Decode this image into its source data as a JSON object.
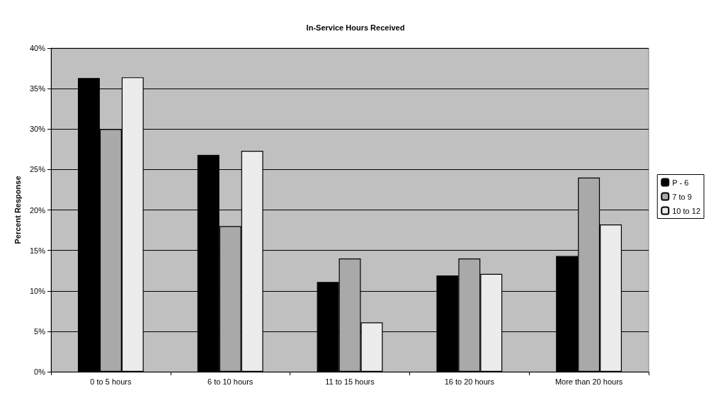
{
  "chart_data": {
    "type": "bar",
    "title": "In-Service Hours Received",
    "ylabel": "Percent Response",
    "categories": [
      "0 to 5 hours",
      "6 to 10 hours",
      "11 to 15 hours",
      "16 to 20 hours",
      "More than 20 hours"
    ],
    "series": [
      {
        "name": "P - 6",
        "color": "#000000",
        "values": [
          36.3,
          26.8,
          11.1,
          11.9,
          14.3
        ]
      },
      {
        "name": "7 to 9",
        "color": "#a9a9a9",
        "values": [
          30.0,
          18.0,
          14.0,
          14.0,
          24.0
        ]
      },
      {
        "name": "10 to 12",
        "color": "#ececec",
        "values": [
          36.4,
          27.3,
          6.1,
          12.1,
          18.2
        ]
      }
    ],
    "ylim": [
      0,
      40
    ],
    "yticks": [
      {
        "value": 0,
        "label": "0%"
      },
      {
        "value": 5,
        "label": "5%"
      },
      {
        "value": 10,
        "label": "10%"
      },
      {
        "value": 15,
        "label": "15%"
      },
      {
        "value": 20,
        "label": "20%"
      },
      {
        "value": 25,
        "label": "25%"
      },
      {
        "value": 30,
        "label": "30%"
      },
      {
        "value": 35,
        "label": "35%"
      },
      {
        "value": 40,
        "label": "40%"
      }
    ],
    "grid": "y",
    "legend": "right"
  }
}
